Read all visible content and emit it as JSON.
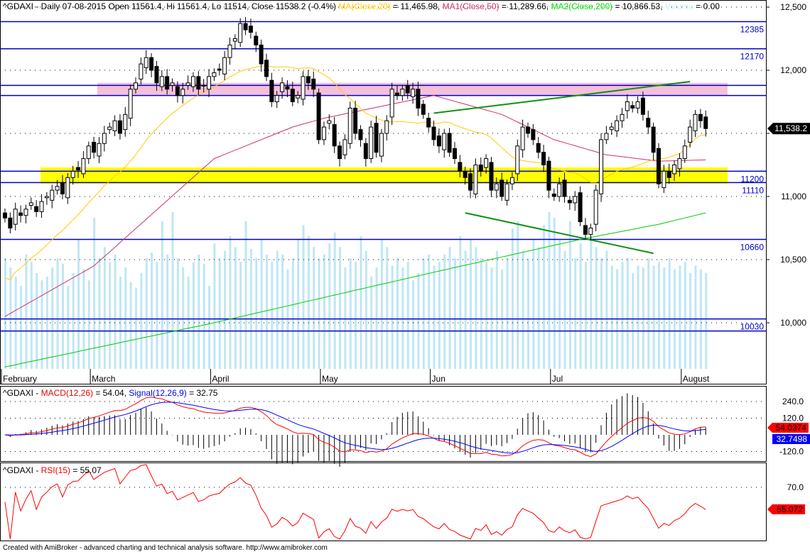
{
  "header": {
    "symbol": "^GDAXI - Daily 07-08-2015 Open 11561.4, Hi 11561.4, Lo 11514, Close 11538.2 (-0.4%)",
    "ma_label": "MA(Close,20)",
    "ma_value": " = 11,465.98, ",
    "ma1_label": "MA1(Close,50)",
    "ma1_value": " = 11,289.66, ",
    "ma2_label": "MA2(Close,200)",
    "ma2_value": " = 10,866.53, ",
    "vol_label": "Volume",
    "vol_value": " = 0.00"
  },
  "macd_header": {
    "symbol": "^GDAXI - ",
    "macd_label": "MACD(12,26)",
    "macd_value": " = 54.04, ",
    "signal_label": "Signal(12,26,9)",
    "signal_value": " = 32.75"
  },
  "rsi_header": {
    "symbol": "^GDAXI - ",
    "rsi_label": "RSI(15)",
    "rsi_value": " = 55.07"
  },
  "footer": "Created with AmiBroker - advanced charting and technical analysis software. http://www.amibroker.com",
  "colors": {
    "ma": "#ffcc00",
    "ma1": "#cc3366",
    "ma2": "#00cc00",
    "volume": "#bfe6f5",
    "level": "#0000cc",
    "pink": "#f5c0d8",
    "yellow": "#ffff00",
    "trend": "#109010",
    "macd": "#ff0000",
    "signal": "#0000ff",
    "rsi": "#ff0000"
  },
  "chart_data": {
    "type": "candlestick",
    "title": "^GDAXI - Daily",
    "months": [
      {
        "label": "February",
        "i": 0
      },
      {
        "label": "March",
        "i": 17
      },
      {
        "label": "April",
        "i": 40
      },
      {
        "label": "May",
        "i": 61
      },
      {
        "label": "Jun",
        "i": 82
      },
      {
        "label": "Jul",
        "i": 105
      },
      {
        "label": "August",
        "i": 130
      }
    ],
    "price_ticks": [
      12500,
      12000,
      11500,
      11000,
      10500,
      10000
    ],
    "price_tick_labels": [
      "12,500",
      "12,000",
      "11,500",
      "11,000",
      "10,500",
      "10,000"
    ],
    "last_price_label": "11,538.2",
    "levels": [
      {
        "v": 12385,
        "label": "12385"
      },
      {
        "v": 12170,
        "label": "12170"
      },
      {
        "v": 11880,
        "label": ""
      },
      {
        "v": 11800,
        "label": ""
      },
      {
        "v": 11200,
        "label": "11200"
      },
      {
        "v": 11110,
        "label": "11110"
      },
      {
        "v": 10660,
        "label": "10660"
      },
      {
        "v": 10030,
        "label": "10030"
      },
      {
        "v": 9935,
        "label": ""
      }
    ],
    "pink_zone": [
      11800,
      11900
    ],
    "yellow_zone": [
      11100,
      11230
    ],
    "close": [
      10830,
      10750,
      10900,
      10850,
      10900,
      10950,
      10880,
      10960,
      11000,
      11050,
      11080,
      11020,
      11150,
      11200,
      11210,
      11300,
      11400,
      11350,
      11420,
      11500,
      11550,
      11600,
      11500,
      11650,
      11850,
      11900,
      12050,
      12100,
      12000,
      11900,
      11950,
      11850,
      11900,
      11800,
      11850,
      11900,
      11950,
      11850,
      11880,
      11950,
      11980,
      12000,
      12100,
      12200,
      12250,
      12370,
      12320,
      12300,
      12200,
      12050,
      11950,
      11750,
      11800,
      11900,
      11850,
      11750,
      11800,
      11950,
      11900,
      11850,
      11450,
      11550,
      11600,
      11400,
      11300,
      11450,
      11700,
      11500,
      11450,
      11300,
      11550,
      11350,
      11500,
      11600,
      11850,
      11800,
      11850,
      11820,
      11850,
      11700,
      11650,
      11550,
      11450,
      11400,
      11500,
      11350,
      11300,
      11200,
      11150,
      11050,
      11250,
      11200,
      11300,
      11050,
      11100,
      11000,
      11100,
      11150,
      11400,
      11550,
      11500,
      11450,
      11350,
      11250,
      11050,
      11000,
      11100,
      11000,
      10950,
      11000,
      10800,
      10700,
      10750,
      11050,
      11450,
      11500,
      11550,
      11600,
      11650,
      11750,
      11700,
      11750,
      11650,
      11550,
      11350,
      11100,
      11200,
      11150,
      11250,
      11300,
      11400,
      11550,
      11650,
      11600,
      11538
    ],
    "volume": [
      60,
      55,
      50,
      45,
      62,
      58,
      52,
      48,
      50,
      55,
      60,
      57,
      45,
      52,
      70,
      54,
      48,
      82,
      60,
      66,
      58,
      62,
      50,
      55,
      47,
      44,
      52,
      60,
      63,
      58,
      80,
      62,
      85,
      60,
      55,
      50,
      58,
      62,
      57,
      45,
      68,
      60,
      64,
      72,
      66,
      58,
      80,
      65,
      60,
      70,
      62,
      58,
      64,
      62,
      54,
      60,
      70,
      78,
      72,
      66,
      60,
      62,
      68,
      74,
      66,
      55,
      60,
      58,
      72,
      64,
      50,
      55,
      70,
      66,
      56,
      60,
      55,
      58,
      48,
      52,
      60,
      62,
      56,
      58,
      62,
      66,
      60,
      72,
      64,
      70,
      66,
      60,
      58,
      55,
      64,
      54,
      60,
      76,
      80,
      64,
      60,
      70,
      66,
      78,
      85,
      82,
      70,
      64,
      80,
      60,
      68,
      58,
      72,
      66,
      60,
      64,
      56,
      54,
      58,
      60,
      52,
      56,
      55,
      60,
      56,
      58,
      55,
      60,
      54,
      56,
      58,
      52,
      56,
      54,
      52
    ],
    "ma50_points": [
      [
        0,
        10050
      ],
      [
        17,
        10450
      ],
      [
        40,
        11300
      ],
      [
        55,
        11550
      ],
      [
        61,
        11620
      ],
      [
        82,
        11800
      ],
      [
        95,
        11650
      ],
      [
        105,
        11450
      ],
      [
        115,
        11330
      ],
      [
        125,
        11280
      ],
      [
        134,
        11290
      ]
    ],
    "ma200_points": [
      [
        0,
        9650
      ],
      [
        40,
        10000
      ],
      [
        82,
        10400
      ],
      [
        110,
        10660
      ],
      [
        125,
        10780
      ],
      [
        134,
        10870
      ]
    ],
    "trendlines": [
      [
        [
          82,
          11660
        ],
        [
          131,
          11910
        ]
      ],
      [
        [
          88,
          10870
        ],
        [
          124,
          10550
        ]
      ]
    ],
    "macd_ticks": [
      240,
      120,
      -120
    ],
    "macd_tick_labels": [
      "240.0",
      "120.0",
      "-120.0"
    ],
    "macd_last": "54.0374",
    "signal_last": "32.7498",
    "rsi_ticks": [
      70
    ],
    "rsi_tick_labels": [
      "70.0"
    ],
    "rsi_last": "55.072"
  }
}
